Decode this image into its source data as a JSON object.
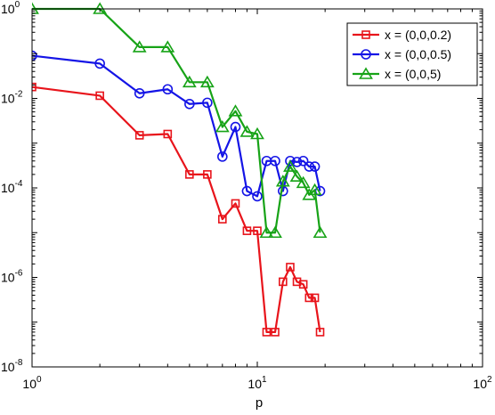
{
  "chart_data": {
    "type": "line",
    "xscale": "log",
    "yscale": "log",
    "xlabel": "p",
    "ylabel": "",
    "xlim": [
      1,
      100
    ],
    "ylim": [
      1e-08,
      1
    ],
    "grid": false,
    "legend_position": "top-right",
    "x_ticks": [
      {
        "value": 1,
        "base": "10",
        "exp": "0"
      },
      {
        "value": 10,
        "base": "10",
        "exp": "1"
      },
      {
        "value": 100,
        "base": "10",
        "exp": "2"
      }
    ],
    "y_ticks": [
      {
        "value": 1e-08,
        "base": "10",
        "exp": "-8"
      },
      {
        "value": 1e-06,
        "base": "10",
        "exp": "-6"
      },
      {
        "value": 0.0001,
        "base": "10",
        "exp": "-4"
      },
      {
        "value": 0.01,
        "base": "10",
        "exp": "-2"
      },
      {
        "value": 1,
        "base": "10",
        "exp": "0"
      }
    ],
    "series": [
      {
        "name": "x = (0,0,0.2)",
        "color": "#e8141b",
        "marker": "square",
        "x": [
          1,
          2,
          3,
          4,
          5,
          6,
          7,
          8,
          9,
          10,
          11,
          12,
          13,
          14,
          15,
          16,
          17,
          18,
          19
        ],
        "y": [
          0.018,
          0.0115,
          0.0015,
          0.0016,
          0.0002,
          0.0002,
          2e-05,
          4.5e-05,
          1.1e-05,
          1.1e-05,
          6e-08,
          6e-08,
          8e-07,
          1.7e-06,
          8e-07,
          7e-07,
          3.5e-07,
          3.5e-07,
          6e-08
        ]
      },
      {
        "name": "x = (0,0,0.5)",
        "color": "#1414e6",
        "marker": "circle",
        "x": [
          1,
          2,
          3,
          4,
          5,
          6,
          7,
          8,
          9,
          10,
          11,
          12,
          13,
          14,
          15,
          16,
          17,
          18,
          19
        ],
        "y": [
          0.09,
          0.06,
          0.013,
          0.016,
          0.0075,
          0.008,
          0.0005,
          0.0023,
          8.5e-05,
          6.5e-05,
          0.0004,
          0.0004,
          8.5e-05,
          0.0004,
          0.00038,
          0.0004,
          0.0003,
          0.0003,
          8.5e-05
        ]
      },
      {
        "name": "x = (0,0,5)",
        "color": "#17a317",
        "marker": "triangle",
        "x": [
          1,
          2,
          3,
          4,
          5,
          6,
          7,
          8,
          9,
          10,
          11,
          12,
          13,
          14,
          15,
          16,
          17,
          18,
          19
        ],
        "y": [
          1.0,
          1.0,
          0.14,
          0.14,
          0.023,
          0.023,
          0.0023,
          0.0052,
          0.0018,
          0.0016,
          1e-05,
          1e-05,
          0.00014,
          0.0003,
          0.00018,
          0.00013,
          7e-05,
          9e-05,
          1e-05
        ]
      }
    ]
  }
}
